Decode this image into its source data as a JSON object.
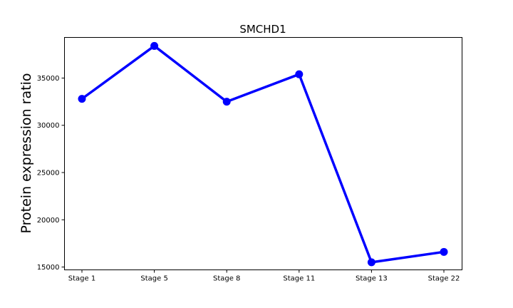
{
  "chart_data": {
    "type": "line",
    "title": "SMCHD1",
    "xlabel": "",
    "ylabel": "Protein expression ratio",
    "categories": [
      "Stage 1",
      "Stage 5",
      "Stage 8",
      "Stage 11",
      "Stage 13",
      "Stage 22"
    ],
    "series": [
      {
        "values": [
          32800,
          38400,
          32500,
          35400,
          15500,
          16600
        ],
        "color": "#0000ff"
      }
    ],
    "ylim": [
      14700,
      39300
    ],
    "yticks": [
      15000,
      20000,
      25000,
      30000,
      35000
    ],
    "ytick_labels": [
      "15000",
      "20000",
      "25000",
      "30000",
      "35000"
    ],
    "grid": false,
    "legend": "none"
  }
}
